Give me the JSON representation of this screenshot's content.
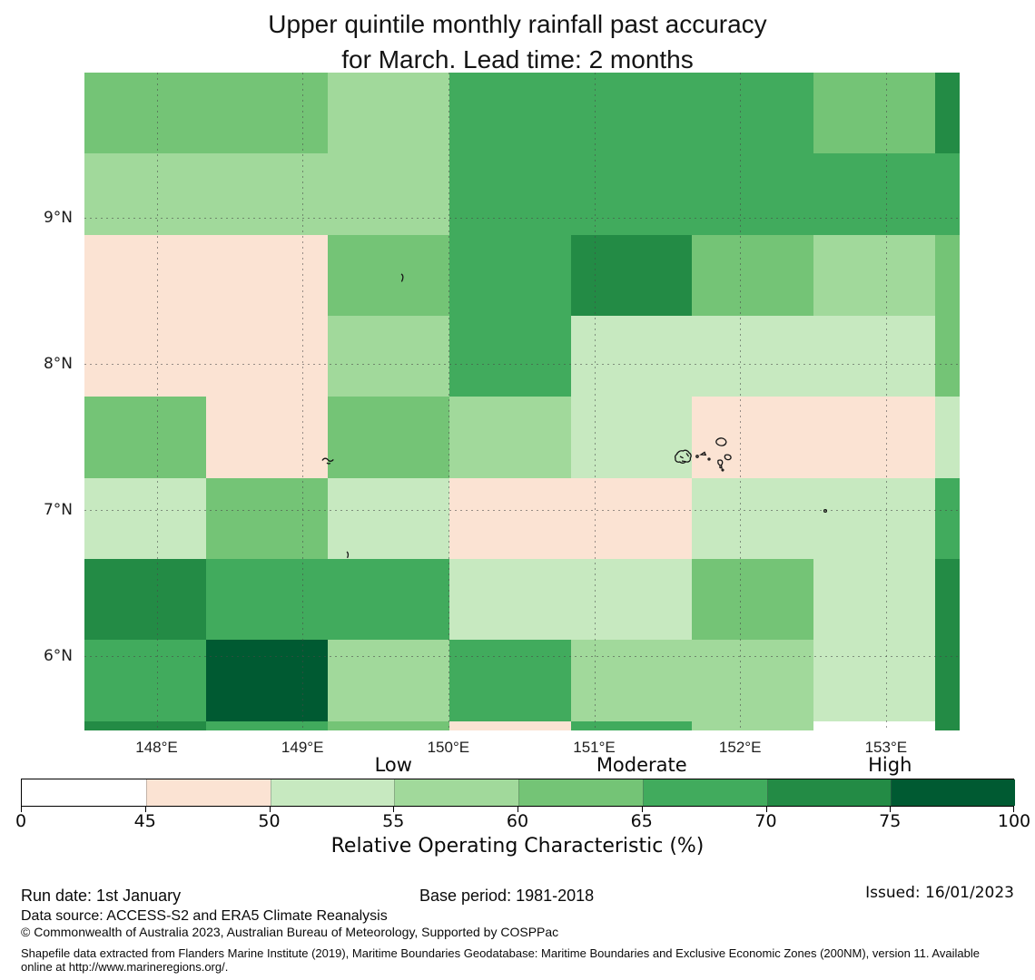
{
  "title": {
    "line1": "Upper quintile monthly rainfall past accuracy",
    "line2": "for March. Lead time: 2 months"
  },
  "chart_data": {
    "type": "heatmap",
    "projection": "lon-lat map, Federated States of Micronesia (Chuuk) region",
    "lon_range": [
      147.505,
      153.505
    ],
    "lat_range": [
      5.49,
      9.995
    ],
    "lon_edges": [
      147.505,
      148.338,
      149.172,
      150.005,
      150.838,
      151.672,
      152.505,
      153.338,
      153.505
    ],
    "lat_edges": [
      9.995,
      9.44,
      8.885,
      8.33,
      7.775,
      7.22,
      6.665,
      6.11,
      5.555,
      5.49
    ],
    "grid_note": "ROC accuracy class per cell, rows listed north to south, columns west to east",
    "grid": [
      [
        "G3",
        "G3",
        "G2",
        "G4",
        "G4",
        "G4",
        "G3",
        "G5"
      ],
      [
        "G2",
        "G2",
        "G2",
        "G4",
        "G4",
        "G4",
        "G4",
        "G4"
      ],
      [
        "PK",
        "PK",
        "G3",
        "G4",
        "G5",
        "G3",
        "G2",
        "G3"
      ],
      [
        "PK",
        "PK",
        "G2",
        "G4",
        "G1",
        "G1",
        "G1",
        "G3"
      ],
      [
        "G3",
        "PK",
        "G3",
        "G2",
        "G1",
        "PK",
        "PK",
        "G1"
      ],
      [
        "G1",
        "G3",
        "G1",
        "PK",
        "PK",
        "G1",
        "G1",
        "G4"
      ],
      [
        "G5",
        "G4",
        "G4",
        "G1",
        "G1",
        "G3",
        "G1",
        "G5"
      ],
      [
        "G4",
        "G6",
        "G2",
        "G4",
        "G2",
        "G2",
        "G1",
        "G5"
      ],
      [
        "G5",
        "G4",
        "G3",
        "PK",
        "G4",
        "G2",
        "W",
        "G5"
      ]
    ],
    "classes": {
      "W": {
        "roc_range": "0-45",
        "color": "#ffffff"
      },
      "PK": {
        "roc_range": "45-50",
        "color": "#fbe3d3"
      },
      "G1": {
        "roc_range": "50-55",
        "color": "#c7e9c0"
      },
      "G2": {
        "roc_range": "55-60",
        "color": "#a1d99b"
      },
      "G3": {
        "roc_range": "60-65",
        "color": "#74c476"
      },
      "G4": {
        "roc_range": "65-70",
        "color": "#41ab5d"
      },
      "G5": {
        "roc_range": "70-75",
        "color": "#238b45"
      },
      "G6": {
        "roc_range": "75-100",
        "color": "#005a32"
      }
    },
    "gridline_lons": [
      148,
      149,
      150,
      151,
      152,
      153
    ],
    "gridline_lats": [
      6,
      7,
      8,
      9
    ],
    "x_ticks": [
      {
        "label": "148°E",
        "lon": 148
      },
      {
        "label": "149°E",
        "lon": 149
      },
      {
        "label": "150°E",
        "lon": 150
      },
      {
        "label": "151°E",
        "lon": 151
      },
      {
        "label": "152°E",
        "lon": 152
      },
      {
        "label": "153°E",
        "lon": 153
      }
    ],
    "y_ticks": [
      {
        "label": "9°N",
        "lat": 9
      },
      {
        "label": "8°N",
        "lat": 8
      },
      {
        "label": "7°N",
        "lat": 7
      },
      {
        "label": "6°N",
        "lat": 6
      }
    ]
  },
  "colorbar": {
    "edges": [
      0,
      45,
      50,
      55,
      60,
      65,
      70,
      75,
      100
    ],
    "bin_colors": [
      "#ffffff",
      "#fbe3d3",
      "#c7e9c0",
      "#a1d99b",
      "#74c476",
      "#41ab5d",
      "#238b45",
      "#005a32"
    ],
    "zone_labels": [
      {
        "text": "Low",
        "at_value": 55
      },
      {
        "text": "Moderate",
        "at_value": 65
      },
      {
        "text": "High",
        "at_value": 75
      }
    ],
    "title": "Relative Operating Characteristic (%)"
  },
  "footer": {
    "run_date": "Run date: 1st January",
    "base_period": "Base period: 1981-2018",
    "issued": "Issued: 16/01/2023",
    "data_source": "Data source: ACCESS-S2 and ERA5 Climate Reanalysis",
    "copyright": "© Commonwealth of Australia 2023, Australian Bureau of Meteorology, Supported by COSPPac",
    "shapefile_line1": "Shapefile data extracted from Flanders Marine Institute (2019), Maritime Boundaries Geodatabase: Maritime Boundaries and Exclusive Economic Zones (200NM), version 11. Available",
    "shapefile_line2": "online at http://www.marineregions.org/."
  }
}
